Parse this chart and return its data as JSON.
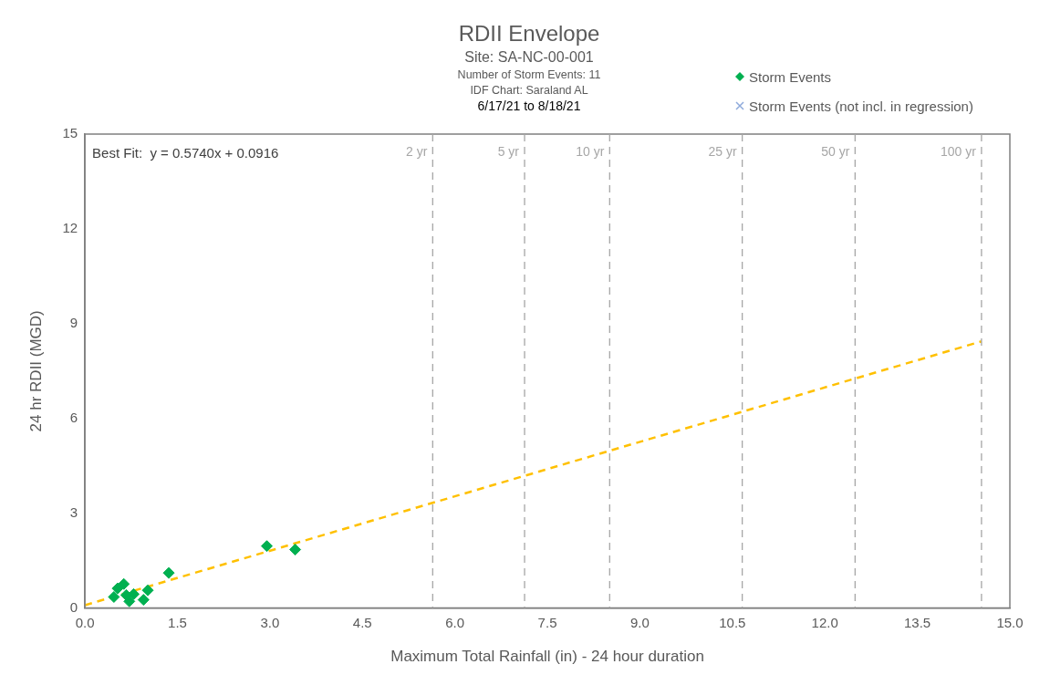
{
  "chart_data": {
    "type": "scatter",
    "title": "RDII Envelope",
    "subtitle": "Site: SA-NC-00-001",
    "annotations": [
      "Number of Storm Events: 11",
      "IDF Chart: Saraland AL",
      "6/17/21 to 8/18/21",
      "Best Fit:  y = 0.5740x + 0.0916"
    ],
    "xlabel": "Maximum Total Rainfall (in) - 24 hour duration",
    "ylabel": "24 hr RDII (MGD)",
    "series": [
      {
        "name": "Storm Events",
        "color": "#00b050",
        "marker": "diamond",
        "x": [
          0.47,
          0.53,
          0.63,
          0.67,
          0.72,
          0.79,
          0.95,
          1.02,
          1.36,
          2.95,
          3.41
        ],
        "values": [
          0.35,
          0.62,
          0.76,
          0.41,
          0.21,
          0.44,
          0.26,
          0.56,
          1.11,
          1.96,
          1.85
        ]
      },
      {
        "name": "Storm Events (not incl. in regression)",
        "color": "#8eaadb",
        "marker": "cross"
      },
      {
        "type": "line",
        "color": "#ffc000",
        "line_style": "dashed",
        "marker": "none",
        "x": [
          0,
          14.54
        ],
        "values": [
          0.09,
          8.44
        ]
      }
    ],
    "ref_lines": [
      {
        "axis": "x",
        "value": 5.64,
        "label": "2 yr",
        "color": "#a6a6a6",
        "line_style": "dashed"
      },
      {
        "axis": "x",
        "value": 7.13,
        "label": "5 yr",
        "color": "#a6a6a6",
        "line_style": "dashed"
      },
      {
        "axis": "x",
        "value": 8.51,
        "label": "10 yr",
        "color": "#a6a6a6",
        "line_style": "dashed"
      },
      {
        "axis": "x",
        "value": 10.66,
        "label": "25 yr",
        "color": "#a6a6a6",
        "line_style": "dashed"
      },
      {
        "axis": "x",
        "value": 12.49,
        "label": "50 yr",
        "color": "#a6a6a6",
        "line_style": "dashed"
      },
      {
        "axis": "x",
        "value": 14.54,
        "label": "100 yr",
        "color": "#a6a6a6",
        "line_style": "dashed"
      }
    ],
    "xlim": [
      0,
      15
    ],
    "xticks": [
      {
        "value": 0,
        "label": "0.0"
      },
      {
        "value": 1.5,
        "label": "1.5"
      },
      {
        "value": 3,
        "label": "3.0"
      },
      {
        "value": 4.5,
        "label": "4.5"
      },
      {
        "value": 6,
        "label": "6.0"
      },
      {
        "value": 7.5,
        "label": "7.5"
      },
      {
        "value": 9,
        "label": "9.0"
      },
      {
        "value": 10.5,
        "label": "10.5"
      },
      {
        "value": 12,
        "label": "12.0"
      },
      {
        "value": 13.5,
        "label": "13.5"
      },
      {
        "value": 15,
        "label": "15.0"
      }
    ],
    "ylim": [
      0,
      15
    ],
    "yticks": [
      0,
      3,
      6,
      9,
      12,
      15
    ],
    "grid": false,
    "legend": "top right"
  }
}
